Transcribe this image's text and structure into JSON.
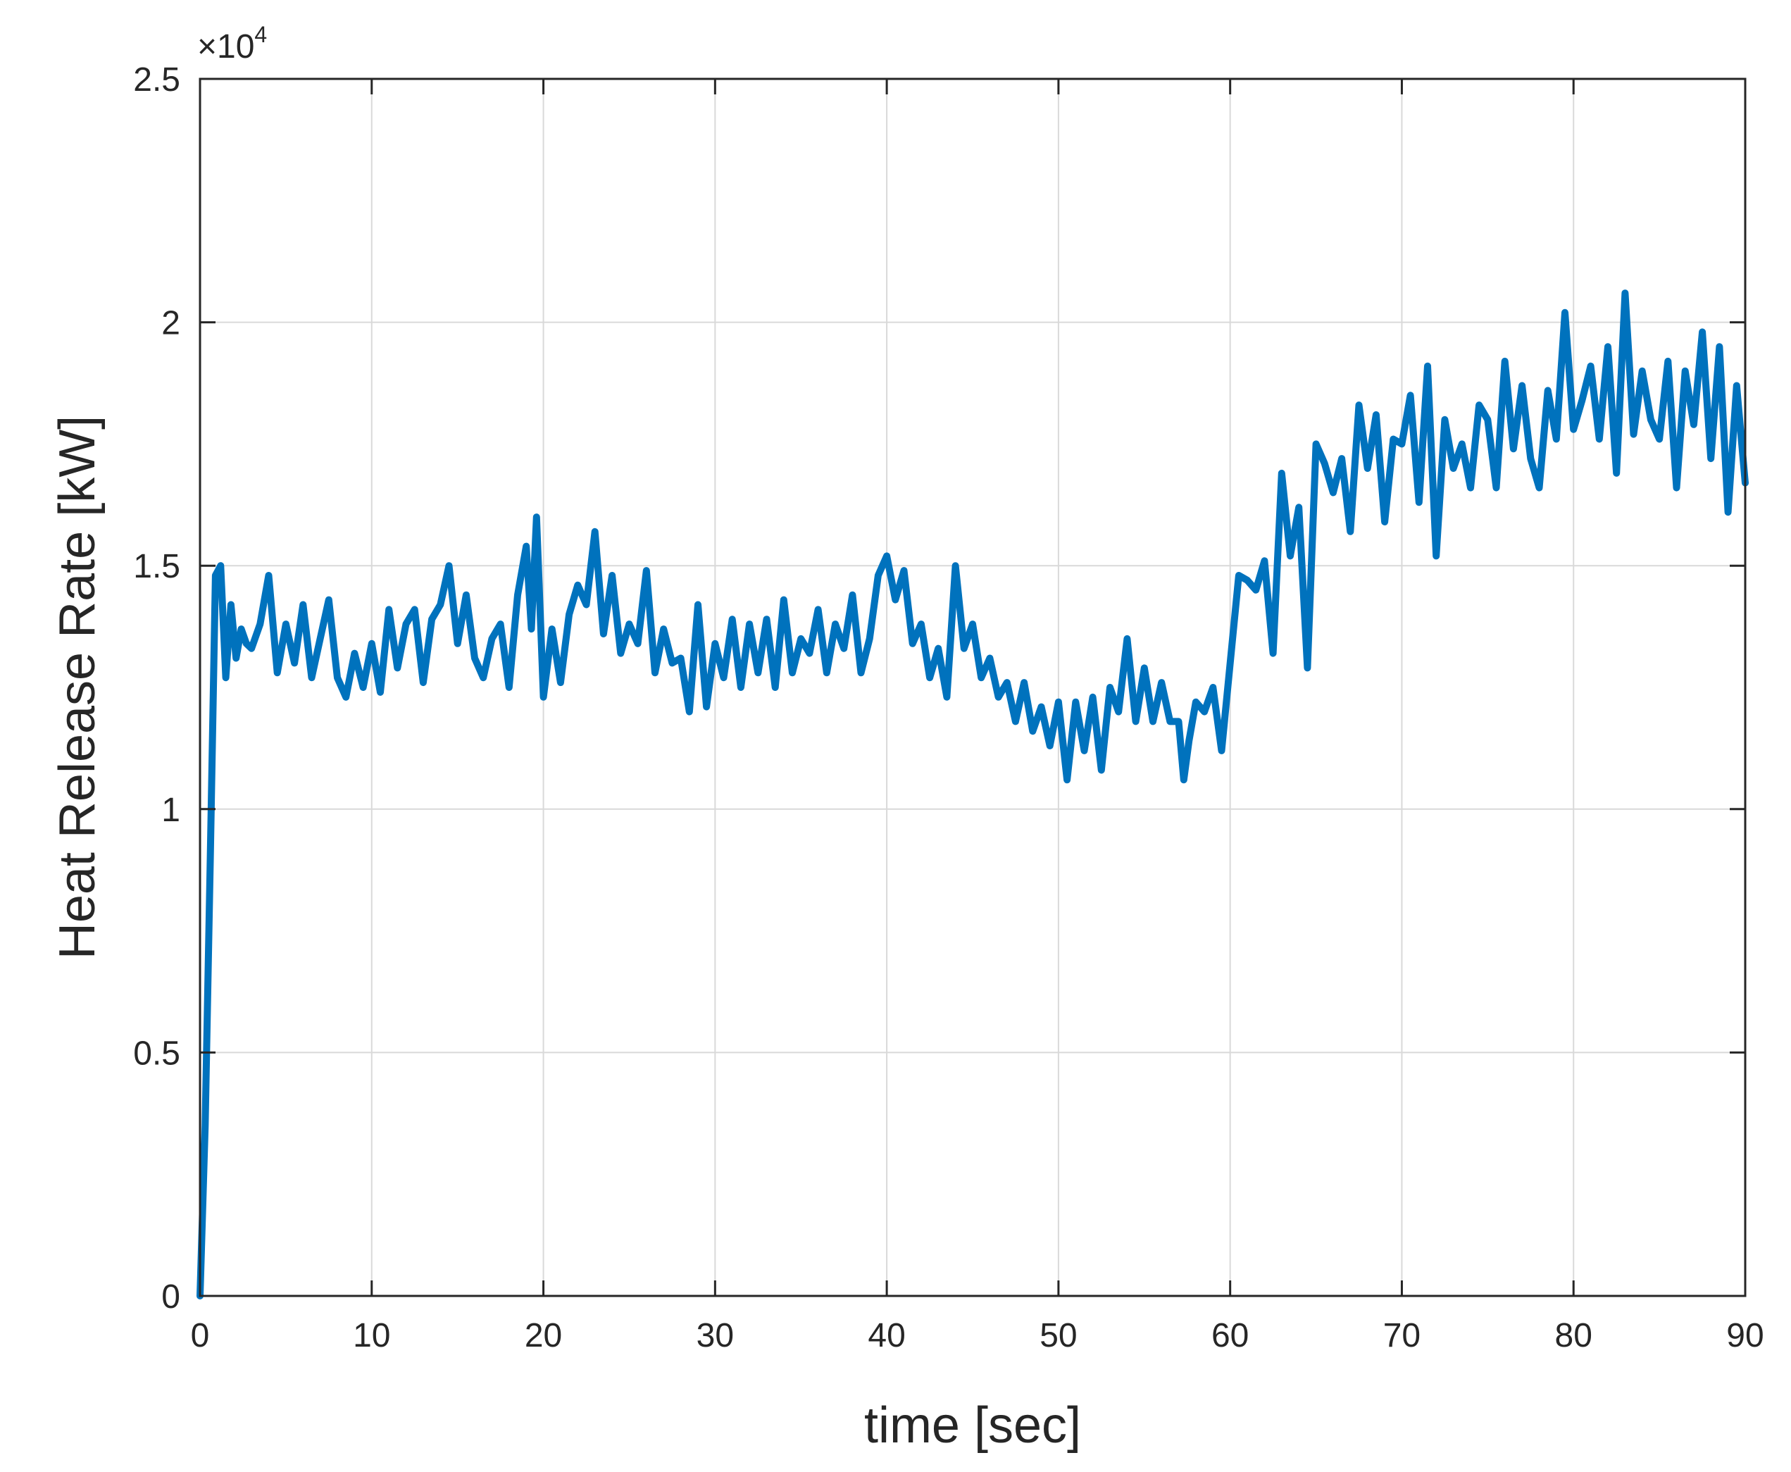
{
  "chart_data": {
    "type": "line",
    "title": "",
    "xlabel": "time [sec]",
    "ylabel": "Heat Release Rate [kW]",
    "xlim": [
      0,
      90
    ],
    "ylim": [
      0,
      25000
    ],
    "y_multiplier": {
      "base": "×10",
      "exponent": "4"
    },
    "grid": true,
    "x_ticks": [
      0,
      10,
      20,
      30,
      40,
      50,
      60,
      70,
      80,
      90
    ],
    "x_tick_labels": [
      "0",
      "10",
      "20",
      "30",
      "40",
      "50",
      "60",
      "70",
      "80",
      "90"
    ],
    "y_ticks": [
      0,
      5000,
      10000,
      15000,
      20000,
      25000
    ],
    "y_tick_labels": [
      "0",
      "0.5",
      "1",
      "1.5",
      "2",
      "2.5"
    ],
    "series": [
      {
        "name": "Heat Release Rate",
        "color": "#0072BD",
        "x": [
          0,
          0.3,
          0.6,
          0.9,
          1.2,
          1.5,
          1.8,
          2.1,
          2.4,
          2.7,
          3,
          3.5,
          4,
          4.5,
          5,
          5.5,
          6,
          6.5,
          7,
          7.5,
          8,
          8.5,
          9,
          9.5,
          10,
          10.5,
          11,
          11.5,
          12,
          12.5,
          13,
          13.5,
          14,
          14.5,
          15,
          15.5,
          16,
          16.5,
          17,
          17.5,
          18,
          18.5,
          19,
          19.3,
          19.6,
          20,
          20.5,
          21,
          21.5,
          22,
          22.5,
          23,
          23.5,
          24,
          24.5,
          25,
          25.5,
          26,
          26.5,
          27,
          27.5,
          28,
          28.5,
          29,
          29.5,
          30,
          30.5,
          31,
          31.5,
          32,
          32.5,
          33,
          33.5,
          34,
          34.5,
          35,
          35.5,
          36,
          36.5,
          37,
          37.5,
          38,
          38.5,
          39,
          39.5,
          40,
          40.5,
          41,
          41.5,
          42,
          42.5,
          43,
          43.5,
          44,
          44.5,
          45,
          45.5,
          46,
          46.5,
          47,
          47.5,
          48,
          48.5,
          49,
          49.5,
          50,
          50.5,
          51,
          51.5,
          52,
          52.5,
          53,
          53.5,
          54,
          54.5,
          55,
          55.5,
          56,
          56.5,
          57,
          57.3,
          57.6,
          58,
          58.5,
          59,
          59.5,
          60,
          60.5,
          61,
          61.5,
          62,
          62.5,
          63,
          63.5,
          64,
          64.5,
          65,
          65.5,
          66,
          66.5,
          67,
          67.5,
          68,
          68.5,
          69,
          69.5,
          70,
          70.5,
          71,
          71.5,
          72,
          72.5,
          73,
          73.5,
          74,
          74.5,
          75,
          75.5,
          76,
          76.5,
          77,
          77.5,
          78,
          78.5,
          79,
          79.5,
          80,
          80.5,
          81,
          81.5,
          82,
          82.5,
          83,
          83.5,
          84,
          84.5,
          85,
          85.5,
          86,
          86.5,
          87,
          87.5,
          88,
          88.5,
          89,
          89.5,
          90
        ],
        "y": [
          0,
          3500,
          9000,
          14800,
          15000,
          12700,
          14200,
          13100,
          13700,
          13400,
          13300,
          13800,
          14800,
          12800,
          13800,
          13000,
          14200,
          12700,
          13500,
          14300,
          12700,
          12300,
          13200,
          12500,
          13400,
          12400,
          14100,
          12900,
          13800,
          14100,
          12600,
          13900,
          14200,
          15000,
          13400,
          14400,
          13100,
          12700,
          13500,
          13800,
          12500,
          14400,
          15400,
          13700,
          16000,
          12300,
          13700,
          12600,
          14000,
          14600,
          14200,
          15700,
          13600,
          14800,
          13200,
          13800,
          13400,
          14900,
          12800,
          13700,
          13000,
          13100,
          12000,
          14200,
          12100,
          13400,
          12700,
          13900,
          12500,
          13800,
          12800,
          13900,
          12500,
          14300,
          12800,
          13500,
          13200,
          14100,
          12800,
          13800,
          13300,
          14400,
          12800,
          13500,
          14800,
          15200,
          14300,
          14900,
          13400,
          13800,
          12700,
          13300,
          12300,
          15000,
          13300,
          13800,
          12700,
          13100,
          12300,
          12600,
          11800,
          12600,
          11600,
          12100,
          11300,
          12200,
          10600,
          12200,
          11200,
          12300,
          10800,
          12500,
          12000,
          13500,
          11800,
          12900,
          11800,
          12600,
          11800,
          11800,
          10600,
          11400,
          12200,
          12000,
          12500,
          11200,
          13000,
          14800,
          14700,
          14500,
          15100,
          13200,
          16900,
          15200,
          16200,
          12900,
          17500,
          17100,
          16500,
          17200,
          15700,
          18300,
          17000,
          18100,
          15900,
          17600,
          17500,
          18500,
          16300,
          19100,
          15200,
          18000,
          17000,
          17500,
          16600,
          18300,
          18000,
          16600,
          19200,
          17400,
          18700,
          17200,
          16600,
          18600,
          17600,
          20200,
          17800,
          18400,
          19100,
          17600,
          19500,
          16900,
          20600,
          17700,
          19000,
          18000,
          17600,
          19200,
          16600,
          19000,
          17900,
          19800,
          17200,
          19500,
          16100,
          18700,
          16700
        ]
      }
    ]
  }
}
